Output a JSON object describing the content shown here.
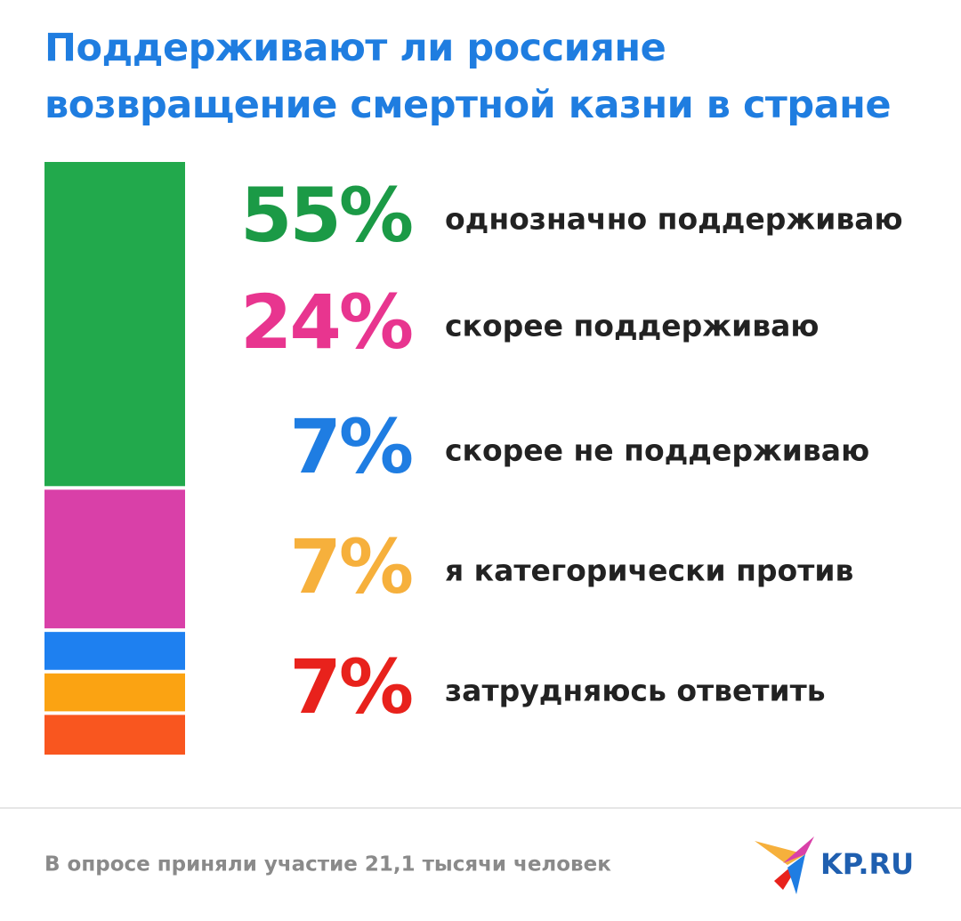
{
  "chart_data": {
    "type": "stacked_bar",
    "title": "Поддерживают ли россияне возвращение смертной казни в стране",
    "categories": [
      "однозначно поддерживаю",
      "скорее поддерживаю",
      "скорее не поддерживаю",
      "я категорически против",
      "затрудняюсь ответить"
    ],
    "values": [
      55,
      24,
      7,
      7,
      7
    ],
    "value_labels": [
      "55%",
      "24%",
      "7%",
      "7%",
      "7%"
    ],
    "colors": [
      "#22a94c",
      "#d940a8",
      "#1e80f0",
      "#fba312",
      "#f9561f"
    ],
    "label_colors": [
      "#1b9a46",
      "#e8358f",
      "#1f7de2",
      "#f6b03c",
      "#e8221c"
    ],
    "footnote": "В опросе приняли участие 21,1 тысячи человек",
    "logo": "KP.RU"
  }
}
